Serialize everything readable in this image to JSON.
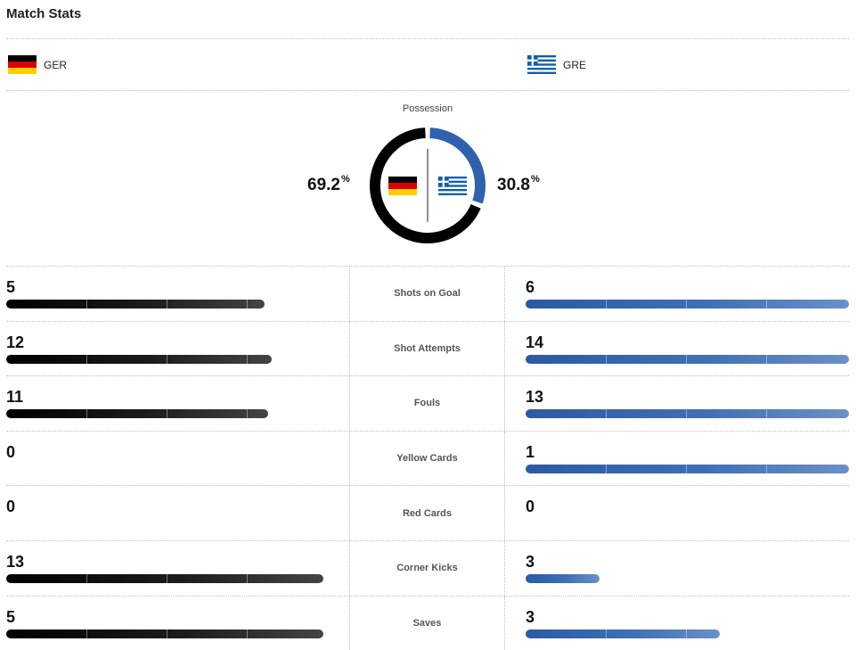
{
  "title": "Match Stats",
  "teams": {
    "home": {
      "abbr": "GER"
    },
    "away": {
      "abbr": "GRE"
    }
  },
  "possession": {
    "label": "Possession",
    "home_value": "69.2",
    "away_value": "30.8",
    "unit": "%"
  },
  "colors": {
    "home": "#000000",
    "away": "#2f62ad"
  },
  "stats": [
    {
      "label": "Shots on Goal",
      "home": "5",
      "away": "6",
      "home_fill": 0.8,
      "away_fill": 1.0
    },
    {
      "label": "Shot Attempts",
      "home": "12",
      "away": "14",
      "home_fill": 0.82,
      "away_fill": 1.0
    },
    {
      "label": "Fouls",
      "home": "11",
      "away": "13",
      "home_fill": 0.81,
      "away_fill": 1.0
    },
    {
      "label": "Yellow Cards",
      "home": "0",
      "away": "1",
      "home_fill": 0,
      "away_fill": 1.0
    },
    {
      "label": "Red Cards",
      "home": "0",
      "away": "0",
      "home_fill": 0,
      "away_fill": 0
    },
    {
      "label": "Corner Kicks",
      "home": "13",
      "away": "3",
      "home_fill": 0.98,
      "away_fill": 0.23
    },
    {
      "label": "Saves",
      "home": "5",
      "away": "3",
      "home_fill": 0.98,
      "away_fill": 0.6
    }
  ]
}
